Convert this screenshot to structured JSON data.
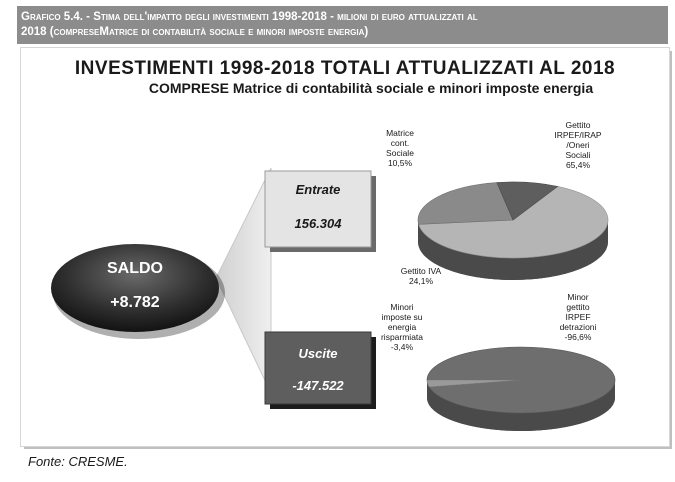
{
  "header": {
    "line1": "Grafico 5.4. - Stima dell'impatto degli investimenti 1998-2018 - milioni di euro attualizzati al",
    "line2": "2018 (compreseMatrice di contabilità sociale e minori imposte energia)"
  },
  "chart_data": {
    "type": "pie",
    "title": "INVESTIMENTI 1998-2018 TOTALI ATTUALIZZATI AL 2018",
    "subtitle": "COMPRESE Matrice di contabilità sociale e minori imposte energia",
    "saldo": {
      "label": "SALDO",
      "value": "+8.782"
    },
    "entrate": {
      "label": "Entrate",
      "value": "156.304",
      "slices": [
        {
          "name": "Gettito IRPEF/IRAP /Oneri Sociali",
          "lines": [
            "Gettito",
            "IRPEF/IRAP",
            "/Oneri",
            "Sociali"
          ],
          "pct_label": "65,4%",
          "value": 65.4,
          "color": "#b5b5b5"
        },
        {
          "name": "Gettito IVA",
          "lines": [
            "Gettito IVA"
          ],
          "pct_label": "24,1%",
          "value": 24.1,
          "color": "#8a8a8a"
        },
        {
          "name": "Matrice cont. Sociale",
          "lines": [
            "Matrice",
            "cont.",
            "Sociale"
          ],
          "pct_label": "10,5%",
          "value": 10.5,
          "color": "#5e5e5e"
        }
      ]
    },
    "uscite": {
      "label": "Uscite",
      "value": "-147.522",
      "slices": [
        {
          "name": "Minor gettito IRPEF detrazioni",
          "lines": [
            "Minor",
            "gettito",
            "IRPEF",
            "detrazioni"
          ],
          "pct_label": "-96,6%",
          "value": 96.6,
          "color": "#6e6e6e"
        },
        {
          "name": "Minori imposte su energia risparmiata",
          "lines": [
            "Minori",
            "imposte su",
            "energia",
            "risparmiata"
          ],
          "pct_label": "-3,4%",
          "value": 3.4,
          "color": "#9a9a9a"
        }
      ]
    }
  },
  "source": "Fonte: CRESME."
}
